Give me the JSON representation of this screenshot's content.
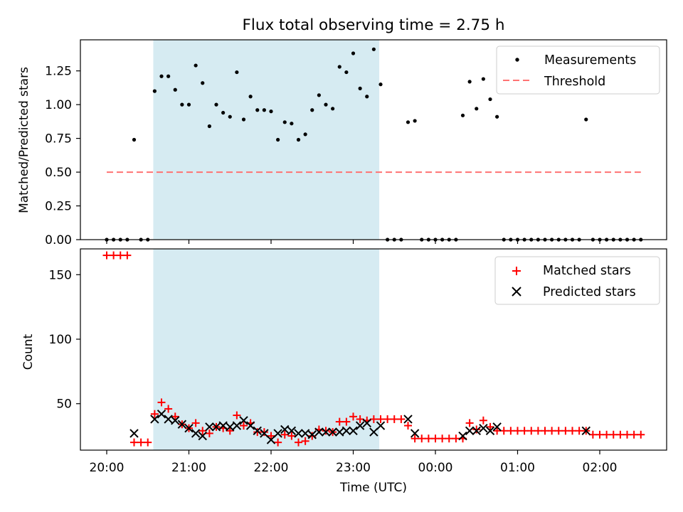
{
  "chart_data": [
    {
      "type": "scatter",
      "title": "Flux total observing time = 2.75 h",
      "xlabel": "",
      "ylabel": "Matched/Predicted stars",
      "ylim": [
        0,
        1.48
      ],
      "yticks": [
        0,
        0.25,
        0.5,
        0.75,
        1.0,
        1.25
      ],
      "ytick_labels": [
        "0.00",
        "0.25",
        "0.50",
        "0.75",
        "1.00",
        "1.25"
      ],
      "legend_position": "top-right",
      "shaded_interval": [
        "20:34",
        "23:19"
      ],
      "series": [
        {
          "name": "Measurements",
          "color": "#000000",
          "points": [
            [
              "20:00",
              0
            ],
            [
              "20:05",
              0
            ],
            [
              "20:10",
              0
            ],
            [
              "20:15",
              0
            ],
            [
              "20:20",
              0.74
            ],
            [
              "20:25",
              0
            ],
            [
              "20:30",
              0
            ],
            [
              "20:35",
              1.1
            ],
            [
              "20:40",
              1.21
            ],
            [
              "20:45",
              1.21
            ],
            [
              "20:50",
              1.11
            ],
            [
              "20:55",
              1.0
            ],
            [
              "21:00",
              1.0
            ],
            [
              "21:05",
              1.29
            ],
            [
              "21:10",
              1.16
            ],
            [
              "21:15",
              0.84
            ],
            [
              "21:20",
              1.0
            ],
            [
              "21:25",
              0.94
            ],
            [
              "21:30",
              0.91
            ],
            [
              "21:35",
              1.24
            ],
            [
              "21:40",
              0.89
            ],
            [
              "21:45",
              1.06
            ],
            [
              "21:50",
              0.96
            ],
            [
              "21:55",
              0.96
            ],
            [
              "22:00",
              0.95
            ],
            [
              "22:05",
              0.74
            ],
            [
              "22:10",
              0.87
            ],
            [
              "22:15",
              0.86
            ],
            [
              "22:20",
              0.74
            ],
            [
              "22:25",
              0.78
            ],
            [
              "22:30",
              0.96
            ],
            [
              "22:35",
              1.07
            ],
            [
              "22:40",
              1.0
            ],
            [
              "22:45",
              0.97
            ],
            [
              "22:50",
              1.28
            ],
            [
              "22:55",
              1.24
            ],
            [
              "23:00",
              1.38
            ],
            [
              "23:05",
              1.12
            ],
            [
              "23:10",
              1.06
            ],
            [
              "23:15",
              1.41
            ],
            [
              "23:20",
              1.15
            ],
            [
              "23:25",
              0
            ],
            [
              "23:30",
              0
            ],
            [
              "23:35",
              0
            ],
            [
              "23:40",
              0.87
            ],
            [
              "23:45",
              0.88
            ],
            [
              "23:50",
              0
            ],
            [
              "23:55",
              0
            ],
            [
              "00:00",
              0
            ],
            [
              "00:05",
              0
            ],
            [
              "00:10",
              0
            ],
            [
              "00:15",
              0
            ],
            [
              "00:20",
              0.92
            ],
            [
              "00:25",
              1.17
            ],
            [
              "00:30",
              0.97
            ],
            [
              "00:35",
              1.19
            ],
            [
              "00:40",
              1.04
            ],
            [
              "00:45",
              0.91
            ],
            [
              "00:50",
              0
            ],
            [
              "00:55",
              0
            ],
            [
              "01:00",
              0
            ],
            [
              "01:05",
              0
            ],
            [
              "01:10",
              0
            ],
            [
              "01:15",
              0
            ],
            [
              "01:20",
              0
            ],
            [
              "01:25",
              0
            ],
            [
              "01:30",
              0
            ],
            [
              "01:35",
              0
            ],
            [
              "01:40",
              0
            ],
            [
              "01:45",
              0
            ],
            [
              "01:50",
              0.89
            ],
            [
              "01:55",
              0
            ],
            [
              "02:00",
              0
            ],
            [
              "02:05",
              0
            ],
            [
              "02:10",
              0
            ],
            [
              "02:15",
              0
            ],
            [
              "02:20",
              0
            ],
            [
              "02:25",
              0
            ],
            [
              "02:30",
              0
            ]
          ]
        },
        {
          "name": "Threshold",
          "color": "#ff7373",
          "points": [
            [
              "20:00",
              0.5
            ],
            [
              "02:30",
              0.5
            ]
          ]
        }
      ]
    },
    {
      "type": "scatter",
      "title": "",
      "xlabel": "Time (UTC)",
      "ylabel": "Count",
      "ylim": [
        14,
        170
      ],
      "yticks": [
        50,
        100,
        150
      ],
      "ytick_labels": [
        "50",
        "100",
        "150"
      ],
      "xticks": [
        "20:00",
        "21:00",
        "22:00",
        "23:00",
        "00:00",
        "01:00",
        "02:00"
      ],
      "legend_position": "top-right",
      "shaded_interval": [
        "20:34",
        "23:19"
      ],
      "series": [
        {
          "name": "Matched stars",
          "color": "#ff0000",
          "points": [
            [
              "20:00",
              165
            ],
            [
              "20:05",
              165
            ],
            [
              "20:10",
              165
            ],
            [
              "20:15",
              165
            ],
            [
              "20:20",
              20
            ],
            [
              "20:25",
              20
            ],
            [
              "20:30",
              20
            ],
            [
              "20:35",
              42
            ],
            [
              "20:40",
              51
            ],
            [
              "20:45",
              46
            ],
            [
              "20:50",
              40
            ],
            [
              "20:55",
              34
            ],
            [
              "21:00",
              31
            ],
            [
              "21:05",
              35
            ],
            [
              "21:10",
              29
            ],
            [
              "21:15",
              27
            ],
            [
              "21:20",
              32
            ],
            [
              "21:25",
              31
            ],
            [
              "21:30",
              29
            ],
            [
              "21:35",
              41
            ],
            [
              "21:40",
              33
            ],
            [
              "21:45",
              35
            ],
            [
              "21:50",
              28
            ],
            [
              "21:55",
              28
            ],
            [
              "22:00",
              25
            ],
            [
              "22:05",
              20
            ],
            [
              "22:10",
              26
            ],
            [
              "22:15",
              25
            ],
            [
              "22:20",
              20
            ],
            [
              "22:25",
              21
            ],
            [
              "22:30",
              25
            ],
            [
              "22:35",
              30
            ],
            [
              "22:40",
              29
            ],
            [
              "22:45",
              28
            ],
            [
              "22:50",
              36
            ],
            [
              "22:55",
              36
            ],
            [
              "23:00",
              40
            ],
            [
              "23:05",
              38
            ],
            [
              "23:10",
              37
            ],
            [
              "23:15",
              38
            ],
            [
              "23:20",
              38
            ],
            [
              "23:25",
              38
            ],
            [
              "23:30",
              38
            ],
            [
              "23:35",
              38
            ],
            [
              "23:40",
              33
            ],
            [
              "23:45",
              23
            ],
            [
              "23:50",
              23
            ],
            [
              "23:55",
              23
            ],
            [
              "00:00",
              23
            ],
            [
              "00:05",
              23
            ],
            [
              "00:10",
              23
            ],
            [
              "00:15",
              23
            ],
            [
              "00:20",
              23
            ],
            [
              "00:25",
              35
            ],
            [
              "00:30",
              30
            ],
            [
              "00:35",
              37
            ],
            [
              "00:40",
              32
            ],
            [
              "00:45",
              29
            ],
            [
              "00:50",
              29
            ],
            [
              "00:55",
              29
            ],
            [
              "01:00",
              29
            ],
            [
              "01:05",
              29
            ],
            [
              "01:10",
              29
            ],
            [
              "01:15",
              29
            ],
            [
              "01:20",
              29
            ],
            [
              "01:25",
              29
            ],
            [
              "01:30",
              29
            ],
            [
              "01:35",
              29
            ],
            [
              "01:40",
              29
            ],
            [
              "01:45",
              29
            ],
            [
              "01:50",
              29
            ],
            [
              "01:55",
              26
            ],
            [
              "02:00",
              26
            ],
            [
              "02:05",
              26
            ],
            [
              "02:10",
              26
            ],
            [
              "02:15",
              26
            ],
            [
              "02:20",
              26
            ],
            [
              "02:25",
              26
            ],
            [
              "02:30",
              26
            ]
          ]
        },
        {
          "name": "Predicted stars",
          "color": "#000000",
          "points": [
            [
              "20:20",
              27
            ],
            [
              "20:35",
              38
            ],
            [
              "20:40",
              42
            ],
            [
              "20:45",
              38
            ],
            [
              "20:50",
              37
            ],
            [
              "20:55",
              34
            ],
            [
              "21:00",
              31
            ],
            [
              "21:05",
              27
            ],
            [
              "21:10",
              25
            ],
            [
              "21:15",
              32
            ],
            [
              "21:20",
              32
            ],
            [
              "21:25",
              33
            ],
            [
              "21:30",
              32
            ],
            [
              "21:35",
              33
            ],
            [
              "21:40",
              37
            ],
            [
              "21:45",
              33
            ],
            [
              "21:50",
              29
            ],
            [
              "21:55",
              27
            ],
            [
              "22:00",
              22
            ],
            [
              "22:05",
              27
            ],
            [
              "22:10",
              30
            ],
            [
              "22:15",
              29
            ],
            [
              "22:20",
              27
            ],
            [
              "22:25",
              27
            ],
            [
              "22:30",
              26
            ],
            [
              "22:35",
              28
            ],
            [
              "22:40",
              28
            ],
            [
              "22:45",
              28
            ],
            [
              "22:50",
              28
            ],
            [
              "22:55",
              29
            ],
            [
              "23:00",
              29
            ],
            [
              "23:05",
              33
            ],
            [
              "23:10",
              35
            ],
            [
              "23:15",
              28
            ],
            [
              "23:20",
              33
            ],
            [
              "23:40",
              38
            ],
            [
              "23:45",
              27
            ],
            [
              "00:20",
              25
            ],
            [
              "00:25",
              29
            ],
            [
              "00:30",
              29
            ],
            [
              "00:35",
              31
            ],
            [
              "00:40",
              29
            ],
            [
              "00:45",
              32
            ],
            [
              "01:50",
              29
            ]
          ]
        }
      ]
    }
  ]
}
